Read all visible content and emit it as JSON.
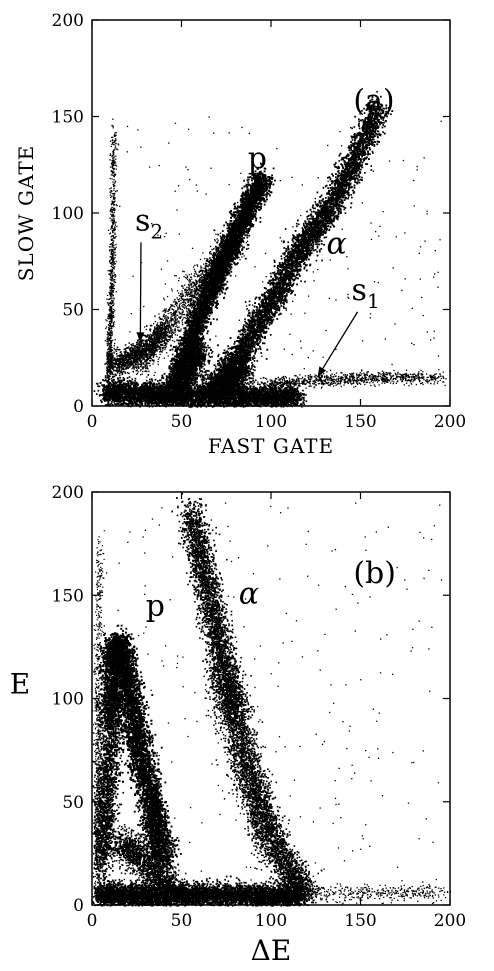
{
  "chart_data": [
    {
      "type": "scatter",
      "panel_label": "(a)",
      "title": "",
      "xlabel": "FAST GATE",
      "ylabel": "SLOW GATE",
      "xlim": [
        0,
        200
      ],
      "ylim": [
        0,
        200
      ],
      "xticks": [
        0,
        50,
        100,
        150,
        200
      ],
      "yticks": [
        0,
        50,
        100,
        150,
        200
      ],
      "grid": false,
      "annotations": [
        {
          "text": "p",
          "x": 87,
          "y": 123
        },
        {
          "text": "α",
          "x": 131,
          "y": 79
        },
        {
          "text": "s",
          "sub": "2",
          "x": 24,
          "y": 91,
          "arrow_to": [
            27,
            33
          ]
        },
        {
          "text": "s",
          "sub": "1",
          "x": 145,
          "y": 55,
          "arrow_to": [
            126,
            15
          ]
        }
      ],
      "series": [
        {
          "name": "p",
          "x": [
            8,
            20,
            40,
            60,
            70,
            80,
            90,
            95,
            100
          ],
          "y": [
            20,
            25,
            35,
            60,
            75,
            90,
            110,
            118,
            124
          ]
        },
        {
          "name": "α",
          "x": [
            60,
            80,
            100,
            110,
            120,
            130,
            140,
            150,
            160
          ],
          "y": [
            12,
            20,
            48,
            65,
            80,
            95,
            115,
            130,
            155
          ]
        },
        {
          "name": "s2",
          "x": [
            8,
            10,
            12,
            14,
            16,
            20
          ],
          "y": [
            10,
            30,
            50,
            70,
            100,
            140
          ]
        },
        {
          "name": "s1",
          "x": [
            50,
            80,
            110,
            130,
            160,
            195
          ],
          "y": [
            5,
            8,
            12,
            15,
            15,
            15
          ]
        }
      ]
    },
    {
      "type": "scatter",
      "panel_label": "(b)",
      "title": "",
      "xlabel": "ΔE",
      "ylabel": "E",
      "xlim": [
        0,
        200
      ],
      "ylim": [
        0,
        200
      ],
      "xticks": [
        0,
        50,
        100,
        150,
        200
      ],
      "yticks": [
        0,
        50,
        100,
        150,
        200
      ],
      "grid": false,
      "annotations": [
        {
          "text": "p",
          "x": 30,
          "y": 140
        },
        {
          "text": "α",
          "x": 82,
          "y": 146
        }
      ],
      "series": [
        {
          "name": "p",
          "x": [
            2,
            10,
            15,
            20,
            25,
            30,
            35,
            40,
            50
          ],
          "y": [
            5,
            120,
            130,
            110,
            80,
            60,
            40,
            25,
            8
          ]
        },
        {
          "name": "α",
          "x": [
            50,
            55,
            60,
            65,
            70,
            80,
            90,
            100,
            110,
            120
          ],
          "y": [
            180,
            190,
            170,
            150,
            130,
            100,
            60,
            35,
            15,
            5
          ]
        }
      ]
    }
  ]
}
